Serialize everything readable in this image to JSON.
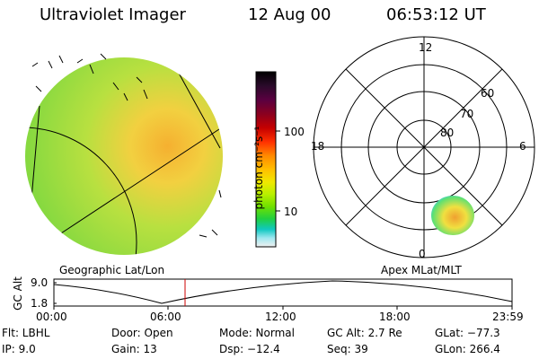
{
  "header": {
    "instrument": "Ultraviolet Imager",
    "date": "12 Aug 00",
    "time": "06:53:12 UT"
  },
  "colorbar": {
    "label": "photon cm⁻²s⁻¹",
    "ticks": [
      "100",
      "10"
    ],
    "colors": [
      "#000000",
      "#2a0a2a",
      "#5a0040",
      "#8a0020",
      "#c40000",
      "#ff3000",
      "#ff8a00",
      "#ffc000",
      "#f0e800",
      "#b8f000",
      "#70e000",
      "#20d040",
      "#10c8c0",
      "#a0e8f0",
      "#f0f0f0"
    ]
  },
  "polar": {
    "mlt_labels": [
      "12",
      "18",
      "6",
      "0"
    ],
    "mlat_labels": [
      "60",
      "70",
      "80"
    ]
  },
  "panels": {
    "left_caption": "Geographic Lat/Lon",
    "right_caption": "Apex MLat/MLT"
  },
  "timeline": {
    "ylabel": "GC Alt",
    "y_ticks": [
      "9.0",
      "1.8"
    ],
    "x_ticks": [
      "00:00",
      "06:00",
      "12:00",
      "18:00",
      "23:59"
    ],
    "marker_color": "#cc0000"
  },
  "footer": {
    "filter": "Flt: LBHL",
    "ip": "IP:  9.0",
    "door": "Door: Open",
    "gain": "Gain: 13",
    "mode": "Mode: Normal",
    "dsp": "Dsp:  −12.4",
    "gc_alt": "GC Alt: 2.7 Re",
    "seq": "Seq: 39",
    "glat": "GLat: −77.3",
    "glon": "GLon: 266.4"
  }
}
